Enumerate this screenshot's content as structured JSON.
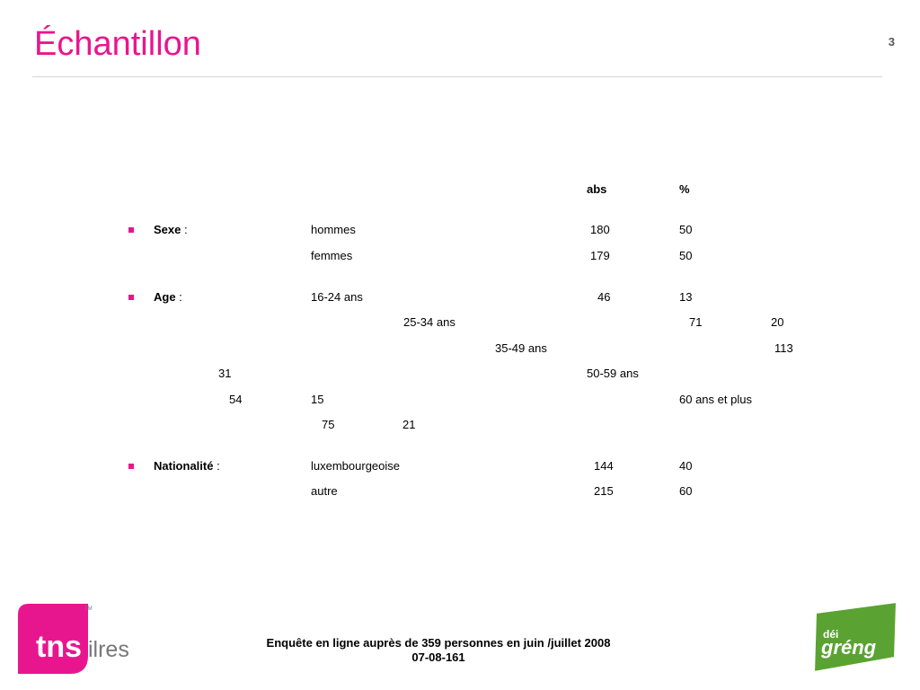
{
  "slide": {
    "title": "Échantillon",
    "page_number": "3"
  },
  "table": {
    "headers": {
      "abs": "abs",
      "pct": "%"
    },
    "sexe": {
      "label": "Sexe",
      "colon": " :",
      "rows": [
        {
          "label": "hommes",
          "abs": "180",
          "pct": "50"
        },
        {
          "label": "femmes",
          "abs": "179",
          "pct": "50"
        }
      ]
    },
    "age": {
      "label": "Age",
      "colon": " :",
      "rows": [
        {
          "label": "16-24 ans",
          "abs": "46",
          "pct": "13"
        },
        {
          "label": "25-34 ans",
          "abs": "71",
          "pct": "20"
        },
        {
          "label": "35-49 ans",
          "abs": "113",
          "pct": "31"
        },
        {
          "label": "50-59 ans",
          "abs": "54",
          "pct": "15"
        },
        {
          "label": "60 ans et plus",
          "abs": "75",
          "pct": "21"
        }
      ]
    },
    "nationalite": {
      "label": "Nationalité",
      "colon": " :",
      "rows": [
        {
          "label": "luxembourgeoise",
          "abs": "144",
          "pct": "40"
        },
        {
          "label": "autre",
          "abs": "215",
          "pct": "60"
        }
      ]
    }
  },
  "footer": {
    "line1": "Enquête en ligne auprès de 359 personnes en juin /juillet 2008",
    "line2": "07-08-161"
  },
  "logos": {
    "tns": {
      "main": "tns",
      "sub": "ilres",
      "tm": "TM"
    },
    "greng": {
      "top": "déi",
      "main": "gréng"
    }
  },
  "colors": {
    "accent": "#e8168e",
    "green": "#5aa332"
  }
}
